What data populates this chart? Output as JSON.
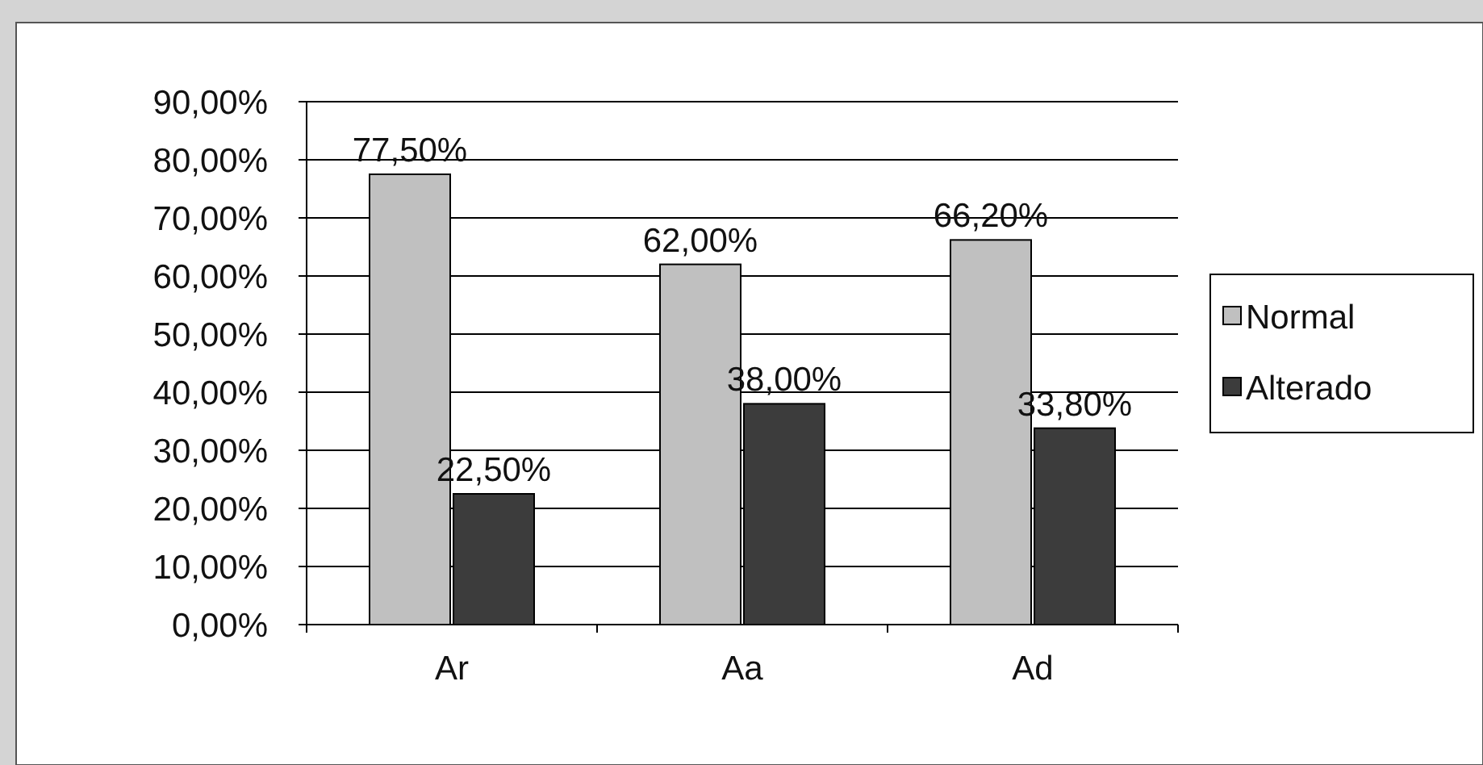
{
  "chart_data": {
    "type": "bar",
    "categories": [
      "Ar",
      "Aa",
      "Ad"
    ],
    "series": [
      {
        "name": "Normal",
        "color": "#c0c0c0",
        "values": [
          77.5,
          62,
          66.2
        ],
        "value_labels": [
          "77,50%",
          "62,00%",
          "66,20%"
        ]
      },
      {
        "name": "Alterado",
        "color": "#3c3c3c",
        "values": [
          22.5,
          38,
          33.8
        ],
        "value_labels": [
          "22,50%",
          "38,00%",
          "33,80%"
        ]
      }
    ],
    "ylim": [
      0,
      90
    ],
    "yticks": [
      {
        "value": 0,
        "label": "0,00%"
      },
      {
        "value": 10,
        "label": "10,00%"
      },
      {
        "value": 20,
        "label": "20,00%"
      },
      {
        "value": 30,
        "label": "30,00%"
      },
      {
        "value": 40,
        "label": "40,00%"
      },
      {
        "value": 50,
        "label": "50,00%"
      },
      {
        "value": 60,
        "label": "60,00%"
      },
      {
        "value": 70,
        "label": "70,00%"
      },
      {
        "value": 80,
        "label": "80,00%"
      },
      {
        "value": 90,
        "label": "90,00%"
      }
    ],
    "grid": "y",
    "legend": "right"
  }
}
